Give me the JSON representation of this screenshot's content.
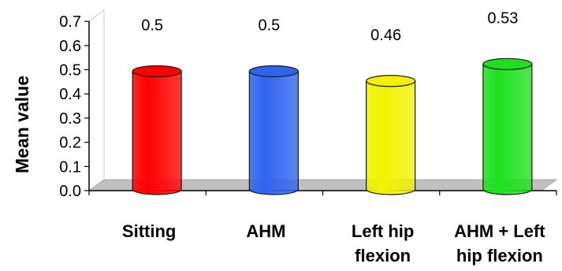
{
  "chart_data": {
    "type": "bar",
    "style": "3d-cylinder",
    "categories": [
      [
        "Sitting"
      ],
      [
        "AHM"
      ],
      [
        "Left hip",
        "flexion"
      ],
      [
        "AHM + Left",
        "hip flexion"
      ]
    ],
    "values": [
      0.5,
      0.5,
      0.46,
      0.53
    ],
    "data_labels": [
      "0.5",
      "0.5",
      "0.46",
      "0.53"
    ],
    "colors": [
      "#ff0000",
      "#2f64f0",
      "#f2f200",
      "#1fe01f"
    ],
    "title": "",
    "xlabel": "",
    "ylabel": "Mean value",
    "ylim": [
      0,
      0.7
    ],
    "yticks": [
      "0.0",
      "0.1",
      "0.2",
      "0.3",
      "0.4",
      "0.5",
      "0.6",
      "0.7"
    ],
    "grid": false,
    "legend": "none"
  }
}
